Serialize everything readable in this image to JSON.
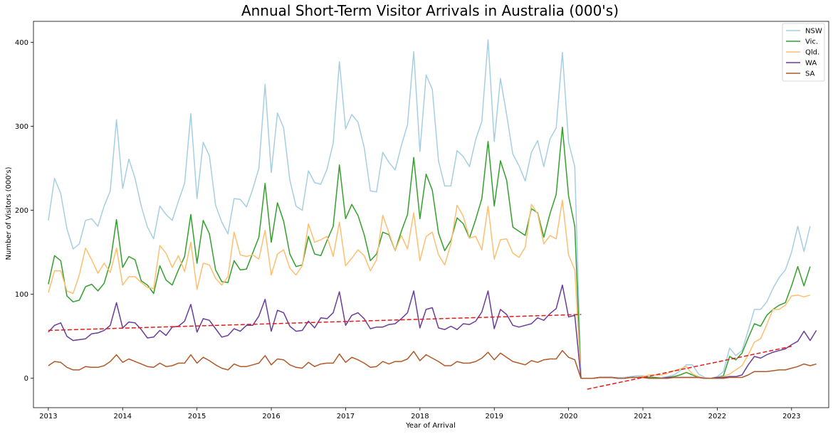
{
  "chart_data": {
    "type": "line",
    "title": "Annual Short-Term Visitor Arrivals in Australia (000's)",
    "xlabel": "Year of Arrival",
    "ylabel": "Number of Visitors (000's)",
    "xlim": [
      2012.8,
      2023.5
    ],
    "ylim": [
      -35,
      425
    ],
    "x_ticks": [
      2013,
      2014,
      2015,
      2016,
      2017,
      2018,
      2019,
      2020,
      2021,
      2022,
      2023
    ],
    "y_ticks": [
      0,
      100,
      200,
      300,
      400
    ],
    "legend_position": "top-right",
    "x_start": 2013,
    "x_step": 0.08333,
    "series": [
      {
        "name": "NSW",
        "color": "#a6cee3",
        "values": [
          188,
          238,
          220,
          178,
          154,
          160,
          188,
          190,
          181,
          205,
          223,
          308,
          226,
          261,
          238,
          205,
          180,
          166,
          205,
          195,
          188,
          211,
          232,
          315,
          214,
          281,
          265,
          206,
          186,
          172,
          214,
          213,
          204,
          225,
          250,
          350,
          245,
          316,
          298,
          236,
          205,
          200,
          247,
          233,
          231,
          249,
          280,
          377,
          297,
          314,
          305,
          275,
          223,
          222,
          269,
          257,
          248,
          277,
          302,
          389,
          270,
          361,
          344,
          259,
          229,
          229,
          271,
          264,
          252,
          284,
          306,
          403,
          282,
          357,
          314,
          267,
          253,
          235,
          269,
          283,
          252,
          285,
          298,
          388,
          281,
          252,
          0,
          0,
          0,
          1,
          1,
          1,
          1,
          1,
          2,
          3,
          3,
          2,
          1,
          1,
          2,
          4,
          9,
          16,
          16,
          5,
          1,
          0,
          2,
          8,
          36,
          27,
          33,
          57,
          82,
          82,
          91,
          107,
          120,
          129,
          150,
          181,
          151,
          181
        ]
      },
      {
        "name": "Vic.",
        "color": "#33a02c",
        "values": [
          112,
          146,
          140,
          98,
          91,
          93,
          109,
          112,
          104,
          113,
          138,
          189,
          132,
          145,
          141,
          116,
          111,
          101,
          134,
          117,
          111,
          129,
          145,
          195,
          137,
          188,
          172,
          129,
          115,
          114,
          140,
          129,
          130,
          149,
          168,
          232,
          162,
          209,
          187,
          148,
          133,
          135,
          169,
          148,
          146,
          164,
          181,
          254,
          190,
          207,
          194,
          171,
          140,
          148,
          174,
          171,
          152,
          175,
          195,
          263,
          190,
          243,
          224,
          173,
          152,
          164,
          191,
          184,
          167,
          189,
          214,
          282,
          205,
          259,
          236,
          180,
          175,
          170,
          202,
          197,
          168,
          196,
          219,
          299,
          217,
          181,
          0,
          0,
          0,
          1,
          1,
          1,
          0,
          0,
          1,
          1,
          2,
          1,
          1,
          0,
          1,
          2,
          4,
          7,
          4,
          1,
          0,
          0,
          1,
          3,
          26,
          22,
          30,
          48,
          65,
          62,
          75,
          82,
          87,
          90,
          110,
          133,
          110,
          133
        ]
      },
      {
        "name": "Qld.",
        "color": "#fdbf6f",
        "values": [
          102,
          128,
          128,
          104,
          101,
          123,
          155,
          141,
          125,
          137,
          126,
          155,
          111,
          121,
          121,
          114,
          108,
          107,
          158,
          149,
          132,
          146,
          127,
          162,
          106,
          137,
          135,
          119,
          111,
          121,
          174,
          147,
          145,
          147,
          142,
          176,
          123,
          148,
          153,
          131,
          123,
          134,
          184,
          162,
          165,
          169,
          145,
          186,
          134,
          143,
          153,
          146,
          128,
          141,
          194,
          173,
          152,
          170,
          154,
          197,
          140,
          169,
          174,
          147,
          135,
          160,
          206,
          193,
          167,
          169,
          153,
          205,
          142,
          165,
          166,
          149,
          144,
          156,
          207,
          196,
          160,
          170,
          166,
          212,
          147,
          129,
          0,
          0,
          0,
          1,
          1,
          1,
          0,
          0,
          1,
          1,
          2,
          4,
          4,
          4,
          6,
          9,
          11,
          14,
          5,
          2,
          0,
          0,
          1,
          2,
          5,
          10,
          15,
          28,
          43,
          47,
          64,
          82,
          82,
          87,
          98,
          99,
          97,
          99
        ]
      },
      {
        "name": "WA",
        "color": "#6a3d9a",
        "values": [
          55,
          63,
          66,
          50,
          45,
          46,
          47,
          53,
          54,
          57,
          63,
          90,
          60,
          67,
          66,
          58,
          48,
          49,
          57,
          51,
          61,
          62,
          68,
          88,
          55,
          71,
          69,
          59,
          49,
          51,
          59,
          56,
          63,
          63,
          74,
          94,
          56,
          81,
          78,
          62,
          56,
          57,
          68,
          60,
          72,
          71,
          78,
          103,
          63,
          75,
          78,
          71,
          59,
          61,
          61,
          64,
          65,
          71,
          78,
          104,
          60,
          82,
          84,
          60,
          58,
          62,
          58,
          65,
          64,
          68,
          79,
          104,
          59,
          82,
          76,
          63,
          61,
          63,
          65,
          72,
          69,
          77,
          83,
          111,
          73,
          75,
          0,
          0,
          0,
          1,
          1,
          1,
          0,
          0,
          1,
          1,
          1,
          0,
          0,
          0,
          1,
          1,
          1,
          1,
          1,
          1,
          0,
          0,
          1,
          1,
          2,
          2,
          4,
          16,
          26,
          24,
          28,
          31,
          33,
          35,
          40,
          44,
          56,
          45,
          57
        ]
      },
      {
        "name": "SA",
        "color": "#b15928",
        "values": [
          15,
          20,
          19,
          13,
          10,
          10,
          14,
          13,
          13,
          15,
          20,
          28,
          19,
          23,
          20,
          17,
          14,
          13,
          18,
          14,
          15,
          18,
          18,
          28,
          18,
          25,
          21,
          16,
          12,
          10,
          17,
          14,
          14,
          16,
          18,
          27,
          16,
          23,
          22,
          16,
          13,
          12,
          19,
          14,
          17,
          18,
          18,
          29,
          19,
          25,
          22,
          18,
          13,
          14,
          20,
          17,
          20,
          20,
          23,
          32,
          21,
          28,
          24,
          20,
          15,
          15,
          20,
          18,
          18,
          20,
          24,
          31,
          22,
          30,
          25,
          20,
          18,
          16,
          21,
          19,
          22,
          23,
          23,
          33,
          25,
          22,
          0,
          0,
          0,
          1,
          1,
          1,
          0,
          0,
          1,
          1,
          1,
          0,
          0,
          0,
          0,
          1,
          1,
          1,
          1,
          1,
          0,
          0,
          0,
          0,
          1,
          1,
          1,
          4,
          8,
          8,
          8,
          9,
          10,
          10,
          12,
          14,
          17,
          15,
          17
        ]
      }
    ],
    "trend_lines": [
      {
        "color": "#e31a1c",
        "x": [
          2013.0,
          2020.17
        ],
        "y": [
          57,
          76
        ]
      },
      {
        "color": "#e31a1c",
        "x": [
          2020.25,
          2023.0
        ],
        "y": [
          -13,
          38
        ]
      }
    ]
  }
}
